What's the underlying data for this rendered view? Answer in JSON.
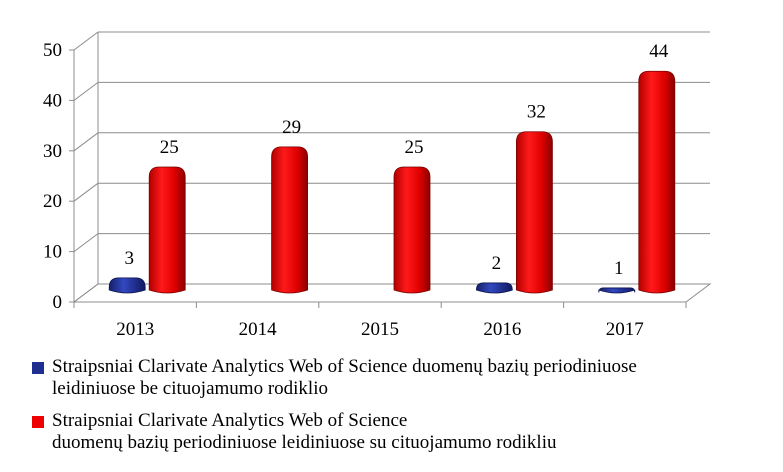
{
  "chart_data": {
    "type": "bar",
    "categories": [
      "2013",
      "2014",
      "2015",
      "2016",
      "2017"
    ],
    "series": [
      {
        "name": "Straipsniai Clarivate Analytics Web of Science duomenų bazių periodiniuose leidiniuose be cituojamumo rodiklio",
        "legend_lines": [
          "Straipsniai Clarivate Analytics Web of Science duomenų bazių periodiniuose",
          "leidiniuose be cituojamumo rodiklio"
        ],
        "values": [
          3,
          0,
          0,
          2,
          1
        ],
        "labels": [
          "3",
          "",
          "",
          "2",
          "1"
        ],
        "color": "#1f2f8f"
      },
      {
        "name": "Straipsniai Clarivate Analytics Web of Science duomenų bazių periodiniuose leidiniuose su cituojamumo rodikliu",
        "legend_lines": [
          "Straipsniai Clarivate Analytics Web of Science",
          "duomenų bazių periodiniuose leidiniuose su cituojamumo rodikliu"
        ],
        "values": [
          25,
          29,
          25,
          32,
          44
        ],
        "labels": [
          "25",
          "29",
          "25",
          "32",
          "44"
        ],
        "color": "#ee0000"
      }
    ],
    "ylim": [
      0,
      50
    ],
    "yticks": [
      "0",
      "10",
      "20",
      "30",
      "40",
      "50"
    ],
    "grid": true,
    "legend_position": "bottom",
    "title": "",
    "xlabel": "",
    "ylabel": ""
  }
}
